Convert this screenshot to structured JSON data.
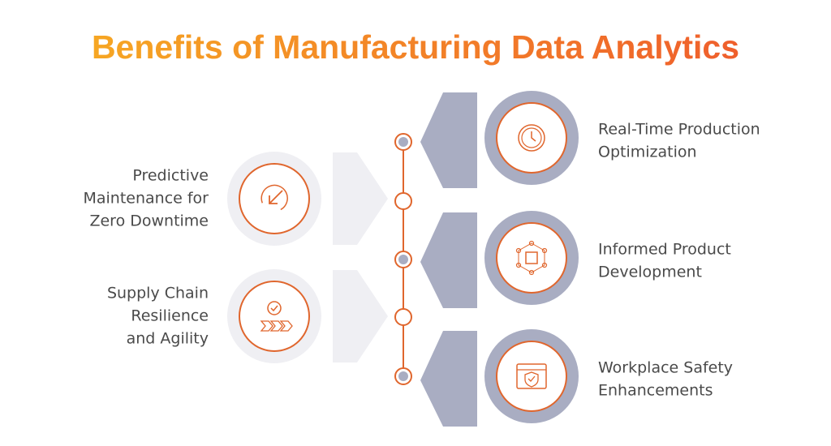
{
  "title": "Benefits of Manufacturing Data Analytics",
  "left_items": [
    {
      "lines": [
        "Predictive",
        "Maintenance for",
        "Zero Downtime"
      ]
    },
    {
      "lines": [
        "Supply Chain",
        "Resilience",
        "and Agility"
      ]
    }
  ],
  "right_items": [
    {
      "lines": [
        "Real-Time Production",
        "Optimization"
      ]
    },
    {
      "lines": [
        "Informed Product",
        "Development"
      ]
    },
    {
      "lines": [
        "Workplace Safety",
        "Enhancements"
      ]
    }
  ]
}
